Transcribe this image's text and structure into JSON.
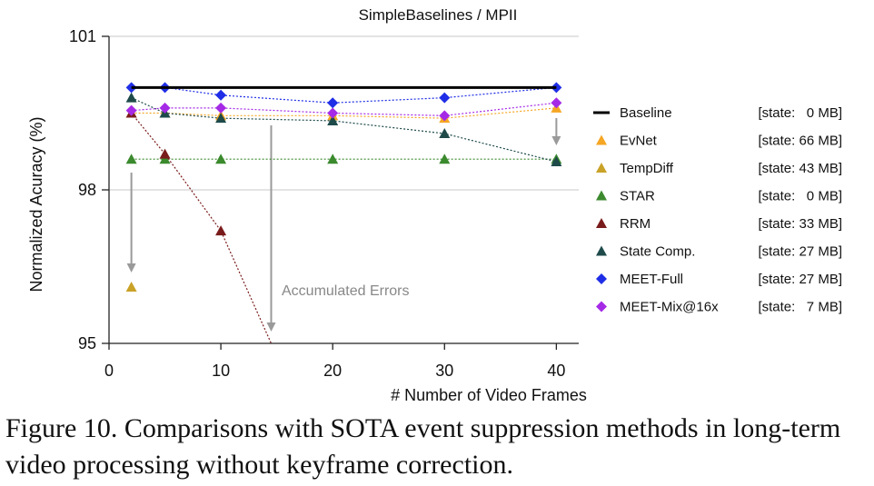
{
  "chart_data": {
    "type": "line",
    "title": "SimpleBaselines / MPII",
    "xlabel": "# Number of Video Frames",
    "ylabel": "Normalized Acuracy (%)",
    "xlim": [
      0,
      42
    ],
    "ylim": [
      95,
      101
    ],
    "xticks": [
      "0",
      "10",
      "20",
      "30",
      "40"
    ],
    "yticks": [
      "95",
      "98",
      "101"
    ],
    "grid": "horizontal",
    "legend_position": "right",
    "series": [
      {
        "name": "Baseline",
        "state": "[state:   0 MB]",
        "marker": "line",
        "color": "#000000",
        "x": [
          2,
          40
        ],
        "y": [
          100.0,
          100.0
        ]
      },
      {
        "name": "EvNet",
        "state": "[state: 66 MB]",
        "marker": "triangle",
        "color": "#f5a623",
        "x": [
          2,
          5,
          10,
          20,
          30,
          40
        ],
        "y": [
          99.5,
          99.5,
          99.45,
          99.45,
          99.4,
          99.6
        ]
      },
      {
        "name": "TempDiff",
        "state": "[state: 43 MB]",
        "marker": "triangle",
        "color": "#c9a227",
        "x": [
          2
        ],
        "y": [
          96.1
        ]
      },
      {
        "name": "STAR",
        "state": "[state:   0 MB]",
        "marker": "triangle",
        "color": "#3b8a2e",
        "x": [
          2,
          5,
          10,
          20,
          30,
          40
        ],
        "y": [
          98.6,
          98.6,
          98.6,
          98.6,
          98.6,
          98.6
        ]
      },
      {
        "name": "RRM",
        "state": "[state: 33 MB]",
        "marker": "triangle",
        "color": "#7a1b1b",
        "x": [
          2,
          5,
          10,
          14.5
        ],
        "y": [
          99.5,
          98.7,
          97.2,
          95.0
        ]
      },
      {
        "name": "State Comp.",
        "state": "[state: 27 MB]",
        "marker": "triangle",
        "color": "#1e4a4a",
        "x": [
          2,
          5,
          10,
          20,
          30,
          40
        ],
        "y": [
          99.8,
          99.5,
          99.4,
          99.35,
          99.1,
          98.55
        ]
      },
      {
        "name": "MEET-Full",
        "state": "[state: 27 MB]",
        "marker": "diamond",
        "color": "#1f2ee6",
        "x": [
          2,
          5,
          10,
          20,
          30,
          40
        ],
        "y": [
          100.0,
          100.0,
          99.85,
          99.7,
          99.8,
          100.0
        ]
      },
      {
        "name": "MEET-Mix@16x",
        "state": "[state:   7 MB]",
        "marker": "diamond",
        "color": "#a52ae6",
        "x": [
          2,
          5,
          10,
          20,
          30,
          40
        ],
        "y": [
          99.55,
          99.6,
          99.6,
          99.5,
          99.45,
          99.7
        ]
      }
    ],
    "annotations": [
      "Accumulated Errors"
    ]
  },
  "caption": "Figure 10. Comparisons with SOTA event suppression methods in long-term video processing without keyframe correction."
}
